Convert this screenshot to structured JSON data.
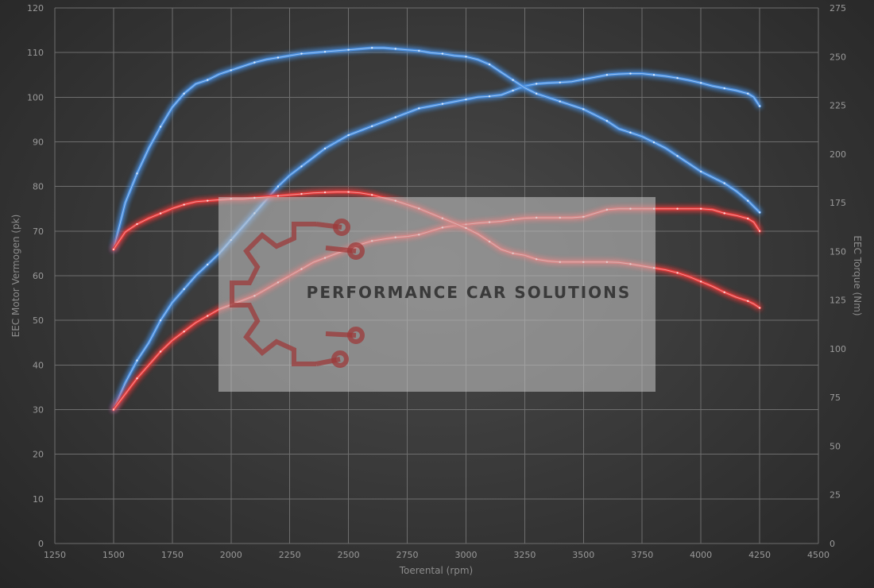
{
  "chart_data": {
    "type": "line",
    "title": "",
    "xlabel": "Toerental (rpm)",
    "ylabel_left": "EEC Motor Vermogen (pk)",
    "ylabel_right": "EEC Torque (Nm)",
    "xlim": [
      1250,
      4500
    ],
    "xticks": [
      1250,
      1500,
      1750,
      2000,
      2250,
      2500,
      2750,
      3000,
      3250,
      3500,
      3750,
      4000,
      4250,
      4500
    ],
    "ylim_left": [
      0,
      120
    ],
    "yticks_left": [
      0,
      10,
      20,
      30,
      40,
      50,
      60,
      70,
      80,
      90,
      100,
      110,
      120
    ],
    "ylim_right": [
      0,
      275
    ],
    "yticks_right": [
      0,
      25,
      50,
      75,
      100,
      125,
      150,
      175,
      200,
      225,
      250,
      275
    ],
    "grid": true,
    "legend": "none",
    "series": [
      {
        "axis": "left",
        "color": "#4a90e2",
        "x": [
          1500,
          1550,
          1600,
          1650,
          1700,
          1750,
          1800,
          1850,
          1900,
          1950,
          2000,
          2050,
          2100,
          2150,
          2200,
          2250,
          2300,
          2350,
          2400,
          2450,
          2500,
          2550,
          2600,
          2650,
          2700,
          2750,
          2800,
          2850,
          2900,
          2950,
          3000,
          3050,
          3100,
          3150,
          3200,
          3250,
          3300,
          3350,
          3400,
          3450,
          3500,
          3550,
          3600,
          3650,
          3700,
          3750,
          3800,
          3850,
          3900,
          3950,
          4000,
          4050,
          4100,
          4150,
          4200,
          4225,
          4250
        ],
        "y": [
          30,
          36,
          41,
          45,
          50,
          54,
          57,
          60,
          62.5,
          65,
          68,
          71,
          74,
          77,
          80,
          82.5,
          84.5,
          86.5,
          88.5,
          90,
          91.5,
          92.5,
          93.5,
          94.5,
          95.5,
          96.5,
          97.5,
          98,
          98.5,
          99,
          99.5,
          100,
          100.2,
          100.5,
          101.5,
          102.5,
          103,
          103.2,
          103.3,
          103.5,
          104,
          104.5,
          105,
          105.2,
          105.3,
          105.3,
          105,
          104.7,
          104.3,
          103.8,
          103.2,
          102.5,
          102,
          101.5,
          100.8,
          100,
          98
        ]
      },
      {
        "axis": "right",
        "color": "#4a90e2",
        "x": [
          1500,
          1550,
          1600,
          1650,
          1700,
          1750,
          1800,
          1850,
          1900,
          1950,
          2000,
          2050,
          2100,
          2150,
          2200,
          2250,
          2300,
          2350,
          2400,
          2450,
          2500,
          2550,
          2600,
          2650,
          2700,
          2750,
          2800,
          2850,
          2900,
          2950,
          3000,
          3050,
          3100,
          3150,
          3200,
          3250,
          3300,
          3350,
          3400,
          3450,
          3500,
          3550,
          3600,
          3650,
          3700,
          3750,
          3800,
          3850,
          3900,
          3950,
          4000,
          4050,
          4100,
          4150,
          4200,
          4225,
          4250
        ],
        "y": [
          151,
          175,
          190,
          203,
          214,
          224,
          231,
          236,
          238,
          241,
          243,
          245,
          247,
          248.5,
          249.5,
          250.5,
          251.5,
          252,
          252.5,
          253,
          253.5,
          254,
          254.5,
          254.5,
          254,
          253.5,
          253,
          252,
          251.5,
          250.5,
          250,
          248.5,
          246,
          242,
          238,
          234,
          231,
          229,
          227,
          225,
          223,
          220,
          217,
          213,
          211,
          209,
          206,
          203,
          199,
          195,
          191,
          188,
          185,
          181,
          176,
          173,
          170
        ]
      },
      {
        "axis": "left",
        "color": "#e83a3a",
        "x": [
          1500,
          1550,
          1600,
          1650,
          1700,
          1750,
          1800,
          1850,
          1900,
          1950,
          2000,
          2050,
          2100,
          2150,
          2200,
          2250,
          2300,
          2350,
          2400,
          2450,
          2500,
          2550,
          2600,
          2650,
          2700,
          2750,
          2800,
          2850,
          2900,
          2950,
          3000,
          3050,
          3100,
          3150,
          3200,
          3250,
          3300,
          3350,
          3400,
          3450,
          3500,
          3550,
          3600,
          3650,
          3700,
          3750,
          3800,
          3850,
          3900,
          3950,
          4000,
          4050,
          4100,
          4150,
          4200,
          4225,
          4250
        ],
        "y": [
          30,
          33.5,
          37,
          40,
          43,
          45.5,
          47.5,
          49.5,
          51,
          52.5,
          53.5,
          54.5,
          55.5,
          57,
          58.5,
          60,
          61.5,
          63,
          64,
          65,
          66,
          67,
          67.8,
          68.2,
          68.6,
          68.8,
          69.2,
          70,
          70.8,
          71.2,
          71.5,
          71.8,
          72,
          72.2,
          72.6,
          72.9,
          73,
          73,
          73,
          73,
          73.2,
          74,
          74.8,
          75,
          75,
          75,
          75,
          75,
          75,
          75,
          75,
          74.8,
          74,
          73.5,
          72.8,
          72,
          70
        ]
      },
      {
        "axis": "right",
        "color": "#e83a3a",
        "x": [
          1500,
          1550,
          1600,
          1650,
          1700,
          1750,
          1800,
          1850,
          1900,
          1950,
          2000,
          2050,
          2100,
          2150,
          2200,
          2250,
          2300,
          2350,
          2400,
          2450,
          2500,
          2550,
          2600,
          2650,
          2700,
          2750,
          2800,
          2850,
          2900,
          2950,
          3000,
          3050,
          3100,
          3150,
          3200,
          3250,
          3300,
          3350,
          3400,
          3450,
          3500,
          3550,
          3600,
          3650,
          3700,
          3750,
          3800,
          3850,
          3900,
          3950,
          4000,
          4050,
          4100,
          4150,
          4200,
          4225,
          4250
        ],
        "y": [
          151,
          160,
          164,
          167,
          169.5,
          172,
          174,
          175.5,
          176,
          176.5,
          177,
          177,
          177.5,
          178,
          178.5,
          179,
          179.5,
          180,
          180.3,
          180.5,
          180.5,
          180,
          179,
          177.5,
          176,
          174,
          172,
          169.5,
          167,
          164.5,
          162,
          159,
          155,
          151,
          149,
          148,
          146,
          145,
          144.5,
          144.5,
          144.5,
          144.5,
          144.5,
          144.3,
          143.5,
          142.5,
          141.5,
          140.5,
          139,
          137,
          134.5,
          132,
          129,
          126.5,
          124.5,
          123,
          121
        ]
      }
    ],
    "watermark": "PERFORMANCE CAR SOLUTIONS"
  }
}
